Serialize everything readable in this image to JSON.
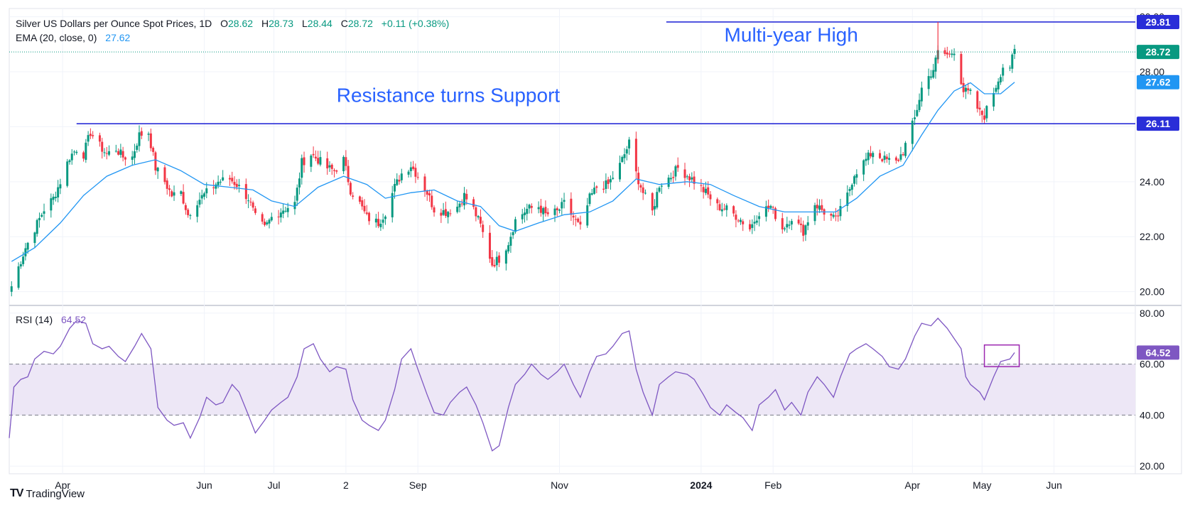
{
  "header": {
    "symbol": "Silver US Dollars per Ounce Spot Prices, 1D",
    "o_label": "O",
    "o_value": "28.62",
    "h_label": "H",
    "h_value": "28.73",
    "l_label": "L",
    "l_value": "28.44",
    "c_label": "C",
    "c_value": "28.72",
    "change": "+0.11 (+0.38%)",
    "ema_label": "EMA (20, close, 0)",
    "ema_value": "27.62",
    "rsi_label": "RSI (14)",
    "rsi_value": "64.52"
  },
  "footer": {
    "brand": "TradingView",
    "logo": "TV"
  },
  "colors": {
    "up": "#089981",
    "down": "#f23645",
    "ema": "#2196f3",
    "level": "#2a2ed8",
    "rsi": "#7e57c2",
    "rsi_band": "#ede7f6",
    "annotation": "#2962ff"
  },
  "chart_data": {
    "type": "candlestick",
    "price_axis": {
      "ylim": [
        19.5,
        30.3
      ],
      "ticks": [
        "20.00",
        "22.00",
        "24.00",
        "26.00",
        "28.00",
        "30.00"
      ]
    },
    "rsi_axis": {
      "ylim": [
        17,
        83
      ],
      "ticks": [
        "20.00",
        "40.00",
        "60.00",
        "80.00"
      ],
      "band": [
        40,
        60
      ]
    },
    "x_ticks": [
      {
        "label": "Apr",
        "date": "2023-04-01"
      },
      {
        "label": "Jun",
        "date": "2023-06-01"
      },
      {
        "label": "Jul",
        "date": "2023-07-01"
      },
      {
        "label": "2",
        "date": "2023-08-01"
      },
      {
        "label": "Sep",
        "date": "2023-09-01"
      },
      {
        "label": "Nov",
        "date": "2023-11-01"
      },
      {
        "label": "2024",
        "date": "2024-01-01",
        "bold": true
      },
      {
        "label": "Feb",
        "date": "2024-02-01"
      },
      {
        "label": "Apr",
        "date": "2024-04-01"
      },
      {
        "label": "May",
        "date": "2024-05-01"
      },
      {
        "label": "Jun",
        "date": "2024-06-01"
      }
    ],
    "x_range": [
      "2023-03-09",
      "2024-07-06"
    ],
    "levels": [
      {
        "value": 29.81,
        "label": "29.81",
        "from": "2023-12-17"
      },
      {
        "value": 26.11,
        "label": "26.11",
        "from": "2023-04-07"
      }
    ],
    "current_price": {
      "value": 28.72,
      "label": "28.72"
    },
    "ema_last": {
      "value": 27.62,
      "label": "27.62"
    },
    "rsi_last": {
      "value": 64.52,
      "label": "64.52"
    },
    "annotations": [
      {
        "text": "Multi-year High",
        "date": "2024-01-11",
        "value": 29.1
      },
      {
        "text": "Resistance turns Support",
        "date": "2023-07-28",
        "value": 26.9
      }
    ],
    "highlight_box": {
      "from": "2024-05-02",
      "to": "2024-05-17",
      "rsi_range": [
        59,
        67.5
      ]
    },
    "close_path": [
      [
        "2023-03-10",
        20.2
      ],
      [
        "2023-03-13",
        20.9
      ],
      [
        "2023-03-16",
        21.6
      ],
      [
        "2023-03-20",
        22.3
      ],
      [
        "2023-03-24",
        23.0
      ],
      [
        "2023-03-28",
        23.4
      ],
      [
        "2023-03-31",
        24.0
      ],
      [
        "2023-04-04",
        24.9
      ],
      [
        "2023-04-07",
        25.2
      ],
      [
        "2023-04-10",
        25.0
      ],
      [
        "2023-04-13",
        25.8
      ],
      [
        "2023-04-17",
        25.3
      ],
      [
        "2023-04-20",
        25.0
      ],
      [
        "2023-04-24",
        25.2
      ],
      [
        "2023-04-27",
        24.9
      ],
      [
        "2023-05-01",
        24.9
      ],
      [
        "2023-05-04",
        25.7
      ],
      [
        "2023-05-08",
        25.8
      ],
      [
        "2023-05-11",
        24.5
      ],
      [
        "2023-05-15",
        24.0
      ],
      [
        "2023-05-18",
        23.5
      ],
      [
        "2023-05-22",
        23.6
      ],
      [
        "2023-05-25",
        22.8
      ],
      [
        "2023-05-29",
        23.3
      ],
      [
        "2023-06-02",
        23.6
      ],
      [
        "2023-06-07",
        24.0
      ],
      [
        "2023-06-12",
        24.1
      ],
      [
        "2023-06-15",
        23.9
      ],
      [
        "2023-06-20",
        23.4
      ],
      [
        "2023-06-23",
        22.7
      ],
      [
        "2023-06-27",
        22.3
      ],
      [
        "2023-06-30",
        22.7
      ],
      [
        "2023-07-05",
        23.0
      ],
      [
        "2023-07-10",
        23.2
      ],
      [
        "2023-07-13",
        24.7
      ],
      [
        "2023-07-17",
        25.0
      ],
      [
        "2023-07-20",
        24.8
      ],
      [
        "2023-07-24",
        24.5
      ],
      [
        "2023-07-27",
        24.4
      ],
      [
        "2023-07-31",
        24.8
      ],
      [
        "2023-08-03",
        23.7
      ],
      [
        "2023-08-07",
        23.2
      ],
      [
        "2023-08-10",
        22.7
      ],
      [
        "2023-08-15",
        22.5
      ],
      [
        "2023-08-18",
        22.9
      ],
      [
        "2023-08-22",
        23.8
      ],
      [
        "2023-08-25",
        24.3
      ],
      [
        "2023-08-29",
        24.6
      ],
      [
        "2023-09-01",
        24.2
      ],
      [
        "2023-09-05",
        23.6
      ],
      [
        "2023-09-08",
        23.0
      ],
      [
        "2023-09-13",
        22.9
      ],
      [
        "2023-09-18",
        23.1
      ],
      [
        "2023-09-21",
        23.5
      ],
      [
        "2023-09-25",
        23.0
      ],
      [
        "2023-09-28",
        22.4
      ],
      [
        "2023-10-03",
        21.0
      ],
      [
        "2023-10-06",
        21.2
      ],
      [
        "2023-10-10",
        21.8
      ],
      [
        "2023-10-13",
        22.6
      ],
      [
        "2023-10-18",
        23.0
      ],
      [
        "2023-10-23",
        23.1
      ],
      [
        "2023-10-26",
        22.8
      ],
      [
        "2023-10-31",
        22.9
      ],
      [
        "2023-11-03",
        23.2
      ],
      [
        "2023-11-07",
        22.7
      ],
      [
        "2023-11-10",
        22.3
      ],
      [
        "2023-11-14",
        23.4
      ],
      [
        "2023-11-17",
        23.8
      ],
      [
        "2023-11-22",
        23.9
      ],
      [
        "2023-11-27",
        24.6
      ],
      [
        "2023-12-01",
        25.4
      ],
      [
        "2023-12-04",
        24.3
      ],
      [
        "2023-12-07",
        23.6
      ],
      [
        "2023-12-11",
        22.9
      ],
      [
        "2023-12-14",
        23.9
      ],
      [
        "2023-12-19",
        24.2
      ],
      [
        "2023-12-22",
        24.5
      ],
      [
        "2023-12-28",
        24.1
      ],
      [
        "2024-01-03",
        23.6
      ],
      [
        "2024-01-08",
        23.1
      ],
      [
        "2024-01-12",
        23.0
      ],
      [
        "2024-01-17",
        22.7
      ],
      [
        "2024-01-22",
        22.3
      ],
      [
        "2024-01-26",
        22.9
      ],
      [
        "2024-01-31",
        23.1
      ],
      [
        "2024-02-05",
        22.3
      ],
      [
        "2024-02-09",
        22.7
      ],
      [
        "2024-02-14",
        22.2
      ],
      [
        "2024-02-19",
        23.2
      ],
      [
        "2024-02-23",
        22.9
      ],
      [
        "2024-02-28",
        22.6
      ],
      [
        "2024-03-04",
        23.5
      ],
      [
        "2024-03-07",
        24.3
      ],
      [
        "2024-03-12",
        24.8
      ],
      [
        "2024-03-15",
        25.1
      ],
      [
        "2024-03-20",
        24.8
      ],
      [
        "2024-03-25",
        24.7
      ],
      [
        "2024-03-28",
        25.1
      ],
      [
        "2024-04-02",
        26.3
      ],
      [
        "2024-04-05",
        27.4
      ],
      [
        "2024-04-10",
        28.1
      ],
      [
        "2024-04-12",
        28.7
      ],
      [
        "2024-04-17",
        28.6
      ],
      [
        "2024-04-19",
        28.8
      ],
      [
        "2024-04-23",
        27.3
      ],
      [
        "2024-04-26",
        27.2
      ],
      [
        "2024-04-30",
        26.5
      ],
      [
        "2024-05-02",
        26.4
      ],
      [
        "2024-05-07",
        27.5
      ],
      [
        "2024-05-10",
        28.2
      ],
      [
        "2024-05-13",
        28.2
      ],
      [
        "2024-05-15",
        28.72
      ]
    ],
    "ema_path": [
      [
        "2023-03-10",
        21.1
      ],
      [
        "2023-03-20",
        21.6
      ],
      [
        "2023-03-31",
        22.5
      ],
      [
        "2023-04-10",
        23.5
      ],
      [
        "2023-04-20",
        24.2
      ],
      [
        "2023-05-01",
        24.6
      ],
      [
        "2023-05-11",
        24.8
      ],
      [
        "2023-05-22",
        24.4
      ],
      [
        "2023-06-01",
        23.9
      ],
      [
        "2023-06-12",
        23.8
      ],
      [
        "2023-06-22",
        23.7
      ],
      [
        "2023-06-30",
        23.3
      ],
      [
        "2023-07-10",
        23.1
      ],
      [
        "2023-07-20",
        23.8
      ],
      [
        "2023-07-31",
        24.2
      ],
      [
        "2023-08-10",
        23.9
      ],
      [
        "2023-08-18",
        23.4
      ],
      [
        "2023-08-29",
        23.6
      ],
      [
        "2023-09-08",
        23.7
      ],
      [
        "2023-09-18",
        23.3
      ],
      [
        "2023-09-28",
        23.1
      ],
      [
        "2023-10-06",
        22.4
      ],
      [
        "2023-10-13",
        22.2
      ],
      [
        "2023-10-23",
        22.5
      ],
      [
        "2023-11-03",
        22.8
      ],
      [
        "2023-11-14",
        22.9
      ],
      [
        "2023-11-24",
        23.3
      ],
      [
        "2023-12-04",
        24.1
      ],
      [
        "2023-12-14",
        23.9
      ],
      [
        "2023-12-26",
        24.0
      ],
      [
        "2024-01-05",
        23.9
      ],
      [
        "2024-01-15",
        23.5
      ],
      [
        "2024-01-26",
        23.1
      ],
      [
        "2024-02-06",
        22.9
      ],
      [
        "2024-02-16",
        22.9
      ],
      [
        "2024-02-28",
        22.9
      ],
      [
        "2024-03-08",
        23.4
      ],
      [
        "2024-03-18",
        24.2
      ],
      [
        "2024-03-28",
        24.6
      ],
      [
        "2024-04-05",
        25.7
      ],
      [
        "2024-04-12",
        26.6
      ],
      [
        "2024-04-19",
        27.3
      ],
      [
        "2024-04-26",
        27.6
      ],
      [
        "2024-05-02",
        27.2
      ],
      [
        "2024-05-09",
        27.2
      ],
      [
        "2024-05-15",
        27.62
      ]
    ],
    "rsi_path": [
      [
        "2023-03-09",
        31
      ],
      [
        "2023-03-11",
        51
      ],
      [
        "2023-03-14",
        54
      ],
      [
        "2023-03-17",
        55
      ],
      [
        "2023-03-20",
        62
      ],
      [
        "2023-03-24",
        65
      ],
      [
        "2023-03-28",
        64
      ],
      [
        "2023-03-31",
        67
      ],
      [
        "2023-04-04",
        74
      ],
      [
        "2023-04-07",
        77
      ],
      [
        "2023-04-11",
        76
      ],
      [
        "2023-04-14",
        68
      ],
      [
        "2023-04-18",
        66
      ],
      [
        "2023-04-21",
        67
      ],
      [
        "2023-04-25",
        63
      ],
      [
        "2023-04-28",
        61
      ],
      [
        "2023-05-02",
        67
      ],
      [
        "2023-05-05",
        72
      ],
      [
        "2023-05-09",
        66
      ],
      [
        "2023-05-12",
        43
      ],
      [
        "2023-05-16",
        38
      ],
      [
        "2023-05-19",
        36
      ],
      [
        "2023-05-23",
        37
      ],
      [
        "2023-05-26",
        31
      ],
      [
        "2023-05-30",
        39
      ],
      [
        "2023-06-02",
        47
      ],
      [
        "2023-06-06",
        44
      ],
      [
        "2023-06-09",
        45
      ],
      [
        "2023-06-13",
        52
      ],
      [
        "2023-06-16",
        49
      ],
      [
        "2023-06-20",
        40
      ],
      [
        "2023-06-23",
        33
      ],
      [
        "2023-06-27",
        38
      ],
      [
        "2023-06-30",
        42
      ],
      [
        "2023-07-04",
        45
      ],
      [
        "2023-07-07",
        47
      ],
      [
        "2023-07-11",
        55
      ],
      [
        "2023-07-14",
        66
      ],
      [
        "2023-07-18",
        68
      ],
      [
        "2023-07-21",
        62
      ],
      [
        "2023-07-25",
        57
      ],
      [
        "2023-07-28",
        59
      ],
      [
        "2023-08-01",
        58
      ],
      [
        "2023-08-04",
        46
      ],
      [
        "2023-08-08",
        38
      ],
      [
        "2023-08-11",
        36
      ],
      [
        "2023-08-15",
        34
      ],
      [
        "2023-08-18",
        38
      ],
      [
        "2023-08-22",
        50
      ],
      [
        "2023-08-25",
        62
      ],
      [
        "2023-08-29",
        66
      ],
      [
        "2023-09-01",
        58
      ],
      [
        "2023-09-05",
        48
      ],
      [
        "2023-09-08",
        41
      ],
      [
        "2023-09-12",
        40
      ],
      [
        "2023-09-15",
        45
      ],
      [
        "2023-09-19",
        49
      ],
      [
        "2023-09-22",
        51
      ],
      [
        "2023-09-26",
        44
      ],
      [
        "2023-09-29",
        37
      ],
      [
        "2023-10-03",
        26
      ],
      [
        "2023-10-06",
        28
      ],
      [
        "2023-10-10",
        43
      ],
      [
        "2023-10-13",
        52
      ],
      [
        "2023-10-17",
        56
      ],
      [
        "2023-10-20",
        60
      ],
      [
        "2023-10-24",
        56
      ],
      [
        "2023-10-27",
        54
      ],
      [
        "2023-10-31",
        57
      ],
      [
        "2023-11-03",
        60
      ],
      [
        "2023-11-07",
        52
      ],
      [
        "2023-11-10",
        47
      ],
      [
        "2023-11-14",
        57
      ],
      [
        "2023-11-17",
        63
      ],
      [
        "2023-11-21",
        64
      ],
      [
        "2023-11-24",
        67
      ],
      [
        "2023-11-28",
        72
      ],
      [
        "2023-12-01",
        73
      ],
      [
        "2023-12-04",
        58
      ],
      [
        "2023-12-07",
        49
      ],
      [
        "2023-12-11",
        40
      ],
      [
        "2023-12-14",
        52
      ],
      [
        "2023-12-18",
        55
      ],
      [
        "2023-12-21",
        57
      ],
      [
        "2023-12-26",
        56
      ],
      [
        "2023-12-29",
        54
      ],
      [
        "2024-01-02",
        48
      ],
      [
        "2024-01-05",
        43
      ],
      [
        "2024-01-09",
        40
      ],
      [
        "2024-01-12",
        44
      ],
      [
        "2024-01-16",
        41
      ],
      [
        "2024-01-19",
        39
      ],
      [
        "2024-01-23",
        34
      ],
      [
        "2024-01-26",
        44
      ],
      [
        "2024-01-30",
        47
      ],
      [
        "2024-02-02",
        50
      ],
      [
        "2024-02-06",
        42
      ],
      [
        "2024-02-09",
        45
      ],
      [
        "2024-02-13",
        40
      ],
      [
        "2024-02-16",
        49
      ],
      [
        "2024-02-20",
        55
      ],
      [
        "2024-02-23",
        52
      ],
      [
        "2024-02-27",
        47
      ],
      [
        "2024-03-01",
        55
      ],
      [
        "2024-03-05",
        64
      ],
      [
        "2024-03-08",
        66
      ],
      [
        "2024-03-12",
        68
      ],
      [
        "2024-03-15",
        66
      ],
      [
        "2024-03-19",
        63
      ],
      [
        "2024-03-22",
        59
      ],
      [
        "2024-03-26",
        58
      ],
      [
        "2024-03-29",
        62
      ],
      [
        "2024-04-02",
        71
      ],
      [
        "2024-04-05",
        76
      ],
      [
        "2024-04-09",
        75
      ],
      [
        "2024-04-12",
        78
      ],
      [
        "2024-04-16",
        74
      ],
      [
        "2024-04-19",
        70
      ],
      [
        "2024-04-22",
        66
      ],
      [
        "2024-04-24",
        55
      ],
      [
        "2024-04-26",
        52
      ],
      [
        "2024-04-30",
        49
      ],
      [
        "2024-05-02",
        46
      ],
      [
        "2024-05-06",
        55
      ],
      [
        "2024-05-09",
        61
      ],
      [
        "2024-05-13",
        62
      ],
      [
        "2024-05-15",
        64.52
      ]
    ]
  }
}
